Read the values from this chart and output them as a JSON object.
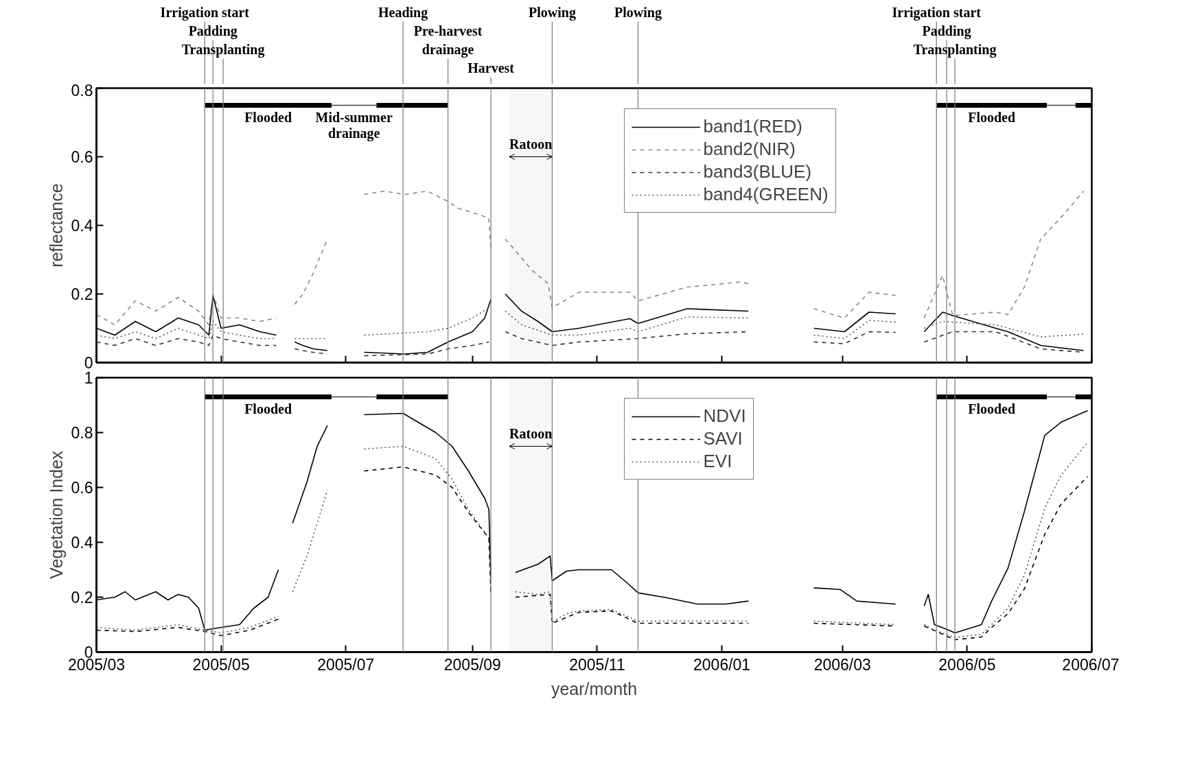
{
  "chart_data": [
    {
      "type": "line",
      "ylabel": "reflectance",
      "xlim": [
        "2005-03-01",
        "2006-07-01"
      ],
      "ylim": [
        0,
        0.8
      ],
      "yticks": [
        0,
        0.2,
        0.4,
        0.6,
        0.8
      ],
      "xticks": [
        {
          "value": "2005-03",
          "label": null
        },
        {
          "value": "2005-05",
          "label": null
        },
        {
          "value": "2005-07",
          "label": null
        },
        {
          "value": "2005-09",
          "label": null
        },
        {
          "value": "2005-11",
          "label": null
        },
        {
          "value": "2006-01",
          "label": null
        },
        {
          "value": "2006-03",
          "label": null
        },
        {
          "value": "2006-05",
          "label": null
        },
        {
          "value": "2006-07",
          "label": null
        }
      ],
      "tick_labels": "y",
      "legend": "top right",
      "series": [
        {
          "name": "band1(RED)",
          "color": "#000000",
          "line_style": "solid",
          "x": [
            "2005-03-01",
            "2005-03-10",
            "2005-03-20",
            "2005-03-30",
            "2005-04-10",
            "2005-04-20",
            "2005-04-25",
            "2005-04-27",
            "2005-05-01",
            "2005-05-10",
            "2005-05-20",
            "2005-05-28",
            "2005-06-01",
            "2005-06-06",
            "2005-06-10",
            "2005-06-15",
            "2005-06-22",
            "2005-07-01",
            "2005-07-10",
            "2005-07-30",
            "2005-08-10",
            "2005-08-20",
            "2005-09-01",
            "2005-09-07",
            "2005-09-10",
            "2005-09-14",
            "2005-09-17",
            "2005-09-25",
            "2005-10-03",
            "2005-10-10",
            "2005-10-23",
            "2005-11-17",
            "2005-11-21",
            "2005-12-15",
            "2006-01-14",
            "2006-02-01",
            "2006-02-15",
            "2006-03-02",
            "2006-03-14",
            "2006-03-27",
            "2006-04-03",
            "2006-04-10",
            "2006-04-19",
            "2006-04-24",
            "2006-05-15",
            "2006-05-21",
            "2006-06-06",
            "2006-06-27"
          ],
          "values": [
            0.1,
            0.08,
            0.12,
            0.09,
            0.13,
            0.11,
            0.08,
            0.195,
            0.1,
            0.11,
            0.09,
            0.08,
            null,
            0.06,
            0.05,
            0.04,
            0.035,
            null,
            0.03,
            0.025,
            0.03,
            0.06,
            0.09,
            0.13,
            0.185,
            null,
            0.2,
            0.15,
            0.12,
            0.09,
            0.1,
            0.128,
            0.114,
            0.157,
            0.15,
            null,
            0.1,
            0.09,
            0.147,
            0.142,
            null,
            0.09,
            0.147,
            0.137,
            0.1,
            0.09,
            0.05,
            0.035
          ]
        },
        {
          "name": "band2(NIR)",
          "color": "#888888",
          "line_style": "dashed",
          "x": [
            "2005-03-01",
            "2005-03-10",
            "2005-03-20",
            "2005-03-30",
            "2005-04-10",
            "2005-04-20",
            "2005-04-25",
            "2005-04-27",
            "2005-05-01",
            "2005-05-10",
            "2005-05-20",
            "2005-05-28",
            "2005-06-01",
            "2005-06-06",
            "2005-06-10",
            "2005-06-15",
            "2005-06-22",
            "2005-07-01",
            "2005-07-10",
            "2005-07-20",
            "2005-07-30",
            "2005-08-10",
            "2005-08-20",
            "2005-08-25",
            "2005-09-05",
            "2005-09-09",
            "2005-09-10",
            "2005-09-14",
            "2005-09-17",
            "2005-09-20",
            "2005-09-30",
            "2005-10-08",
            "2005-10-10",
            "2005-10-23",
            "2005-11-17",
            "2005-11-21",
            "2005-12-15",
            "2006-01-10",
            "2006-01-14",
            "2006-02-01",
            "2006-02-15",
            "2006-03-02",
            "2006-03-14",
            "2006-03-27",
            "2006-04-03",
            "2006-04-10",
            "2006-04-19",
            "2006-04-24",
            "2006-05-15",
            "2006-05-21",
            "2006-05-29",
            "2006-06-06",
            "2006-06-17",
            "2006-06-27"
          ],
          "values": [
            0.14,
            0.11,
            0.18,
            0.15,
            0.19,
            0.15,
            0.11,
            0.2,
            0.13,
            0.13,
            0.12,
            0.13,
            null,
            0.17,
            0.2,
            0.26,
            0.36,
            null,
            0.49,
            0.5,
            0.49,
            0.5,
            0.47,
            0.45,
            0.43,
            0.42,
            0.33,
            null,
            0.36,
            0.34,
            0.27,
            0.23,
            0.16,
            0.205,
            0.205,
            0.18,
            0.22,
            0.235,
            0.23,
            null,
            0.157,
            0.13,
            0.205,
            0.196,
            null,
            0.13,
            0.254,
            0.137,
            0.147,
            0.14,
            0.22,
            0.36,
            0.43,
            0.5
          ]
        },
        {
          "name": "band3(BLUE)",
          "color": "#333333",
          "line_style": "dashed",
          "x": [
            "2005-03-01",
            "2005-03-10",
            "2005-03-20",
            "2005-03-30",
            "2005-04-10",
            "2005-04-20",
            "2005-04-25",
            "2005-04-27",
            "2005-05-01",
            "2005-05-10",
            "2005-05-20",
            "2005-05-28",
            "2005-06-01",
            "2005-06-06",
            "2005-06-10",
            "2005-06-15",
            "2005-06-22",
            "2005-07-01",
            "2005-07-10",
            "2005-08-10",
            "2005-08-20",
            "2005-09-01",
            "2005-09-09",
            "2005-09-14",
            "2005-09-17",
            "2005-09-25",
            "2005-10-10",
            "2005-10-23",
            "2005-11-21",
            "2005-12-15",
            "2006-01-14",
            "2006-02-01",
            "2006-02-15",
            "2006-03-02",
            "2006-03-14",
            "2006-03-27",
            "2006-04-03",
            "2006-04-10",
            "2006-04-24",
            "2006-05-15",
            "2006-06-06",
            "2006-06-27"
          ],
          "values": [
            0.06,
            0.05,
            0.07,
            0.05,
            0.07,
            0.06,
            0.05,
            0.08,
            0.07,
            0.06,
            0.05,
            0.05,
            null,
            0.04,
            0.035,
            0.03,
            0.025,
            null,
            0.02,
            0.025,
            0.04,
            0.05,
            0.06,
            null,
            0.09,
            0.07,
            0.05,
            0.06,
            0.07,
            0.084,
            0.09,
            null,
            0.06,
            0.055,
            0.09,
            0.088,
            null,
            0.06,
            0.09,
            0.09,
            0.04,
            0.03
          ]
        },
        {
          "name": "band4(GREEN)",
          "color": "#555555",
          "line_style": "dotted",
          "x": [
            "2005-03-01",
            "2005-03-10",
            "2005-03-20",
            "2005-03-30",
            "2005-04-10",
            "2005-04-20",
            "2005-04-25",
            "2005-04-27",
            "2005-05-01",
            "2005-05-10",
            "2005-05-20",
            "2005-05-28",
            "2005-06-01",
            "2005-06-06",
            "2005-06-10",
            "2005-06-15",
            "2005-06-22",
            "2005-07-01",
            "2005-07-10",
            "2005-08-10",
            "2005-08-20",
            "2005-09-01",
            "2005-09-09",
            "2005-09-14",
            "2005-09-17",
            "2005-09-25",
            "2005-10-10",
            "2005-10-23",
            "2005-11-17",
            "2005-11-21",
            "2005-12-15",
            "2006-01-14",
            "2006-02-01",
            "2006-02-15",
            "2006-03-02",
            "2006-03-14",
            "2006-03-27",
            "2006-04-03",
            "2006-04-10",
            "2006-04-19",
            "2006-04-24",
            "2006-05-15",
            "2006-06-06",
            "2006-06-27"
          ],
          "values": [
            0.08,
            0.07,
            0.09,
            0.07,
            0.1,
            0.08,
            0.07,
            0.12,
            0.09,
            0.08,
            0.07,
            0.07,
            null,
            0.07,
            0.07,
            0.07,
            0.07,
            null,
            0.08,
            0.09,
            0.1,
            0.13,
            0.16,
            null,
            0.15,
            0.11,
            0.08,
            0.08,
            0.1,
            0.09,
            0.133,
            0.13,
            null,
            0.08,
            0.07,
            0.123,
            0.118,
            null,
            0.1,
            0.12,
            0.118,
            0.11,
            0.075,
            0.083
          ]
        },
        {
          "color": "#000000",
          "x": [
            "2005-04-23",
            "2005-06-24",
            "2005-06-30",
            "2005-07-16",
            "2005-08-20",
            "2005-09-01",
            "2006-04-16",
            "2006-06-09",
            "2006-06-15",
            "2006-06-23",
            "2006-07-01"
          ],
          "values": [
            0.75,
            0.75,
            null,
            0.75,
            0.75,
            null,
            0.75,
            0.75,
            null,
            0.75,
            0.75
          ]
        },
        {
          "color": "#404040",
          "x": [
            "2005-06-24",
            "2005-07-16",
            "2005-08-01",
            "2006-06-09",
            "2006-06-23"
          ],
          "values": [
            0.75,
            0.75,
            null,
            0.75,
            0.75
          ]
        }
      ],
      "ref_lines": [
        {
          "axis": "x",
          "value": "2005-04-23",
          "label": "Irrigation start",
          "color": "#808080"
        },
        {
          "axis": "x",
          "value": "2005-04-27",
          "label": "Padding",
          "color": "#808080"
        },
        {
          "axis": "x",
          "value": "2005-05-02",
          "label": "Transplanting",
          "color": "#808080"
        },
        {
          "axis": "x",
          "value": "2005-07-29",
          "label": "Heading",
          "color": "#808080"
        },
        {
          "axis": "x",
          "value": "2005-08-20",
          "label": "Pre-harvest\ndrainage",
          "color": "#808080"
        },
        {
          "axis": "x",
          "value": "2005-09-10",
          "label": "Harvest",
          "color": "#808080"
        },
        {
          "axis": "x",
          "value": "2005-10-10",
          "label": "Plowing",
          "color": "#808080"
        },
        {
          "axis": "x",
          "value": "2005-11-21",
          "label": "Plowing",
          "color": "#808080"
        },
        {
          "axis": "x",
          "value": "2006-04-16",
          "label": "Irrigation start",
          "color": "#808080"
        },
        {
          "axis": "x",
          "value": "2006-04-21",
          "label": "Padding",
          "color": "#808080"
        },
        {
          "axis": "x",
          "value": "2006-04-25",
          "label": "Transplanting",
          "color": "#808080"
        }
      ],
      "bands": [
        {
          "axis": "x",
          "from": "2005-09-19",
          "to": "2005-10-10",
          "label": "Ratoon"
        }
      ],
      "annotations": [
        {
          "text": "Flooded",
          "x": "2005-05-24",
          "y": 0.75
        },
        {
          "text": "Mid-summer\ndrainage",
          "x": "2005-07-05",
          "y": 0.75
        },
        {
          "text": "Flooded",
          "x": "2006-05-13",
          "y": 0.75
        }
      ]
    },
    {
      "type": "line",
      "ylabel": "Vegetation Index",
      "xlabel": "year/month",
      "xlim": [
        "2005-03-01",
        "2006-07-01"
      ],
      "ylim": [
        0,
        1
      ],
      "yticks": [
        0,
        0.2,
        0.4,
        0.6,
        0.8,
        1
      ],
      "xticks": [
        {
          "value": "2005-03",
          "label": "2005/03"
        },
        {
          "value": "2005-05",
          "label": "2005/05"
        },
        {
          "value": "2005-07",
          "label": "2005/07"
        },
        {
          "value": "2005-09",
          "label": "2005/09"
        },
        {
          "value": "2005-11",
          "label": "2005/11"
        },
        {
          "value": "2006-01",
          "label": "2006/01"
        },
        {
          "value": "2006-03",
          "label": "2006/03"
        },
        {
          "value": "2006-05",
          "label": "2006/05"
        },
        {
          "value": "2006-07",
          "label": "2006/07"
        }
      ],
      "legend": "top right",
      "series": [
        {
          "name": "NDVI",
          "color": "#000000",
          "line_style": "solid",
          "x": [
            "2005-03-01",
            "2005-03-10",
            "2005-03-15",
            "2005-03-20",
            "2005-03-30",
            "2005-04-05",
            "2005-04-10",
            "2005-04-15",
            "2005-04-20",
            "2005-04-23",
            "2005-05-01",
            "2005-05-10",
            "2005-05-17",
            "2005-05-24",
            "2005-05-29",
            "2005-06-02",
            "2005-06-05",
            "2005-06-12",
            "2005-06-17",
            "2005-06-22",
            "2005-07-01",
            "2005-07-10",
            "2005-07-29",
            "2005-08-14",
            "2005-08-22",
            "2005-08-30",
            "2005-09-07",
            "2005-09-09",
            "2005-09-10",
            "2005-09-15",
            "2005-09-22",
            "2005-10-03",
            "2005-10-09",
            "2005-10-10",
            "2005-10-17",
            "2005-10-23",
            "2005-11-08",
            "2005-11-16",
            "2005-11-21",
            "2005-12-05",
            "2005-12-20",
            "2006-01-03",
            "2006-01-14",
            "2006-02-01",
            "2006-02-15",
            "2006-02-28",
            "2006-03-08",
            "2006-03-18",
            "2006-03-27",
            "2006-04-03",
            "2006-04-10",
            "2006-04-12",
            "2006-04-15",
            "2006-04-21",
            "2006-04-25",
            "2006-05-08",
            "2006-05-13",
            "2006-05-21",
            "2006-05-29",
            "2006-06-08",
            "2006-06-16",
            "2006-06-29"
          ],
          "values": [
            0.19,
            0.2,
            0.22,
            0.19,
            0.22,
            0.19,
            0.21,
            0.2,
            0.16,
            0.08,
            0.09,
            0.1,
            0.16,
            0.2,
            0.3,
            null,
            0.47,
            0.62,
            0.75,
            0.826,
            null,
            0.865,
            0.87,
            0.8,
            0.75,
            0.66,
            0.56,
            0.52,
            0.27,
            null,
            0.29,
            0.32,
            0.35,
            0.26,
            0.295,
            0.3,
            0.3,
            0.25,
            0.216,
            0.198,
            0.175,
            0.175,
            0.186,
            null,
            0.234,
            0.228,
            0.186,
            0.18,
            0.175,
            null,
            0.168,
            0.21,
            0.1,
            0.083,
            0.07,
            0.1,
            0.186,
            0.306,
            0.512,
            0.79,
            0.838,
            0.88
          ]
        },
        {
          "name": "SAVI",
          "color": "#000000",
          "line_style": "dashed",
          "x": [
            "2005-03-01",
            "2005-03-20",
            "2005-04-10",
            "2005-04-23",
            "2005-05-01",
            "2005-05-15",
            "2005-05-29",
            "2005-06-02",
            "2005-07-10",
            "2005-07-29",
            "2005-08-14",
            "2005-08-22",
            "2005-08-30",
            "2005-09-09",
            "2005-09-10",
            "2005-09-15",
            "2005-09-22",
            "2005-10-09",
            "2005-10-10",
            "2005-10-23",
            "2005-11-08",
            "2005-11-21",
            "2006-01-14",
            "2006-02-01",
            "2006-02-15",
            "2006-03-27",
            "2006-04-03",
            "2006-04-10",
            "2006-04-25",
            "2006-05-08",
            "2006-05-13",
            "2006-05-21",
            "2006-05-29",
            "2006-06-08",
            "2006-06-16",
            "2006-06-29"
          ],
          "values": [
            0.08,
            0.075,
            0.09,
            0.075,
            0.06,
            0.08,
            0.12,
            null,
            0.66,
            0.675,
            0.645,
            0.6,
            0.51,
            0.415,
            0.21,
            null,
            0.2,
            0.21,
            0.105,
            0.145,
            0.15,
            0.105,
            0.105,
            null,
            0.105,
            0.095,
            null,
            0.095,
            0.045,
            0.055,
            0.09,
            0.14,
            0.23,
            0.43,
            0.54,
            0.64
          ]
        },
        {
          "name": "EVI",
          "color": "#555555",
          "line_style": "dotted",
          "x": [
            "2005-03-01",
            "2005-03-20",
            "2005-04-10",
            "2005-04-23",
            "2005-05-01",
            "2005-05-15",
            "2005-05-29",
            "2005-06-02",
            "2005-06-05",
            "2005-06-12",
            "2005-06-17",
            "2005-06-22",
            "2005-07-01",
            "2005-07-10",
            "2005-07-29",
            "2005-08-14",
            "2005-08-22",
            "2005-08-30",
            "2005-09-09",
            "2005-09-10",
            "2005-09-15",
            "2005-09-22",
            "2005-10-03",
            "2005-10-09",
            "2005-10-10",
            "2005-10-17",
            "2005-10-23",
            "2005-11-08",
            "2005-11-21",
            "2006-01-14",
            "2006-02-01",
            "2006-02-15",
            "2006-03-27",
            "2006-04-03",
            "2006-04-10",
            "2006-04-15",
            "2006-04-25",
            "2006-05-08",
            "2006-05-13",
            "2006-05-21",
            "2006-05-29",
            "2006-06-08",
            "2006-06-16",
            "2006-06-29"
          ],
          "values": [
            0.09,
            0.08,
            0.1,
            0.08,
            0.07,
            0.09,
            0.13,
            null,
            0.22,
            0.35,
            0.47,
            0.59,
            null,
            0.74,
            0.75,
            0.705,
            0.63,
            0.52,
            0.415,
            0.21,
            null,
            0.22,
            0.21,
            0.22,
            0.11,
            0.14,
            0.15,
            0.155,
            0.113,
            0.113,
            null,
            0.113,
            0.1,
            null,
            0.1,
            0.08,
            0.053,
            0.065,
            0.1,
            0.16,
            0.28,
            0.524,
            0.645,
            0.765
          ]
        },
        {
          "color": "#000000",
          "x": [
            "2005-04-23",
            "2005-06-24",
            "2005-06-30",
            "2005-07-16",
            "2005-08-20",
            "2005-09-01",
            "2006-04-16",
            "2006-06-09",
            "2006-06-15",
            "2006-06-23",
            "2006-07-01"
          ],
          "values": [
            0.93,
            0.93,
            null,
            0.93,
            0.93,
            null,
            0.93,
            0.93,
            null,
            0.93,
            0.93
          ]
        },
        {
          "color": "#404040",
          "x": [
            "2005-06-24",
            "2005-07-16",
            "2005-08-01",
            "2006-06-09",
            "2006-06-23"
          ],
          "values": [
            0.93,
            0.93,
            null,
            0.93,
            0.93
          ]
        }
      ],
      "ref_lines": [
        {
          "axis": "x",
          "value": "2005-04-23",
          "color": "#808080"
        },
        {
          "axis": "x",
          "value": "2005-04-27",
          "color": "#808080"
        },
        {
          "axis": "x",
          "value": "2005-05-02",
          "color": "#808080"
        },
        {
          "axis": "x",
          "value": "2005-07-29",
          "color": "#808080"
        },
        {
          "axis": "x",
          "value": "2005-08-20",
          "color": "#808080"
        },
        {
          "axis": "x",
          "value": "2005-09-10",
          "color": "#808080"
        },
        {
          "axis": "x",
          "value": "2005-10-10",
          "color": "#808080"
        },
        {
          "axis": "x",
          "value": "2005-11-21",
          "color": "#808080"
        },
        {
          "axis": "x",
          "value": "2006-04-16",
          "color": "#808080"
        },
        {
          "axis": "x",
          "value": "2006-04-21",
          "color": "#808080"
        },
        {
          "axis": "x",
          "value": "2006-04-25",
          "color": "#808080"
        }
      ],
      "bands": [
        {
          "axis": "x",
          "from": "2005-09-19",
          "to": "2005-10-10",
          "label": "Ratoon"
        }
      ],
      "annotations": [
        {
          "text": "Flooded",
          "x": "2005-05-24",
          "y": 0.93
        },
        {
          "text": "Flooded",
          "x": "2006-05-13",
          "y": 0.93
        }
      ]
    }
  ]
}
